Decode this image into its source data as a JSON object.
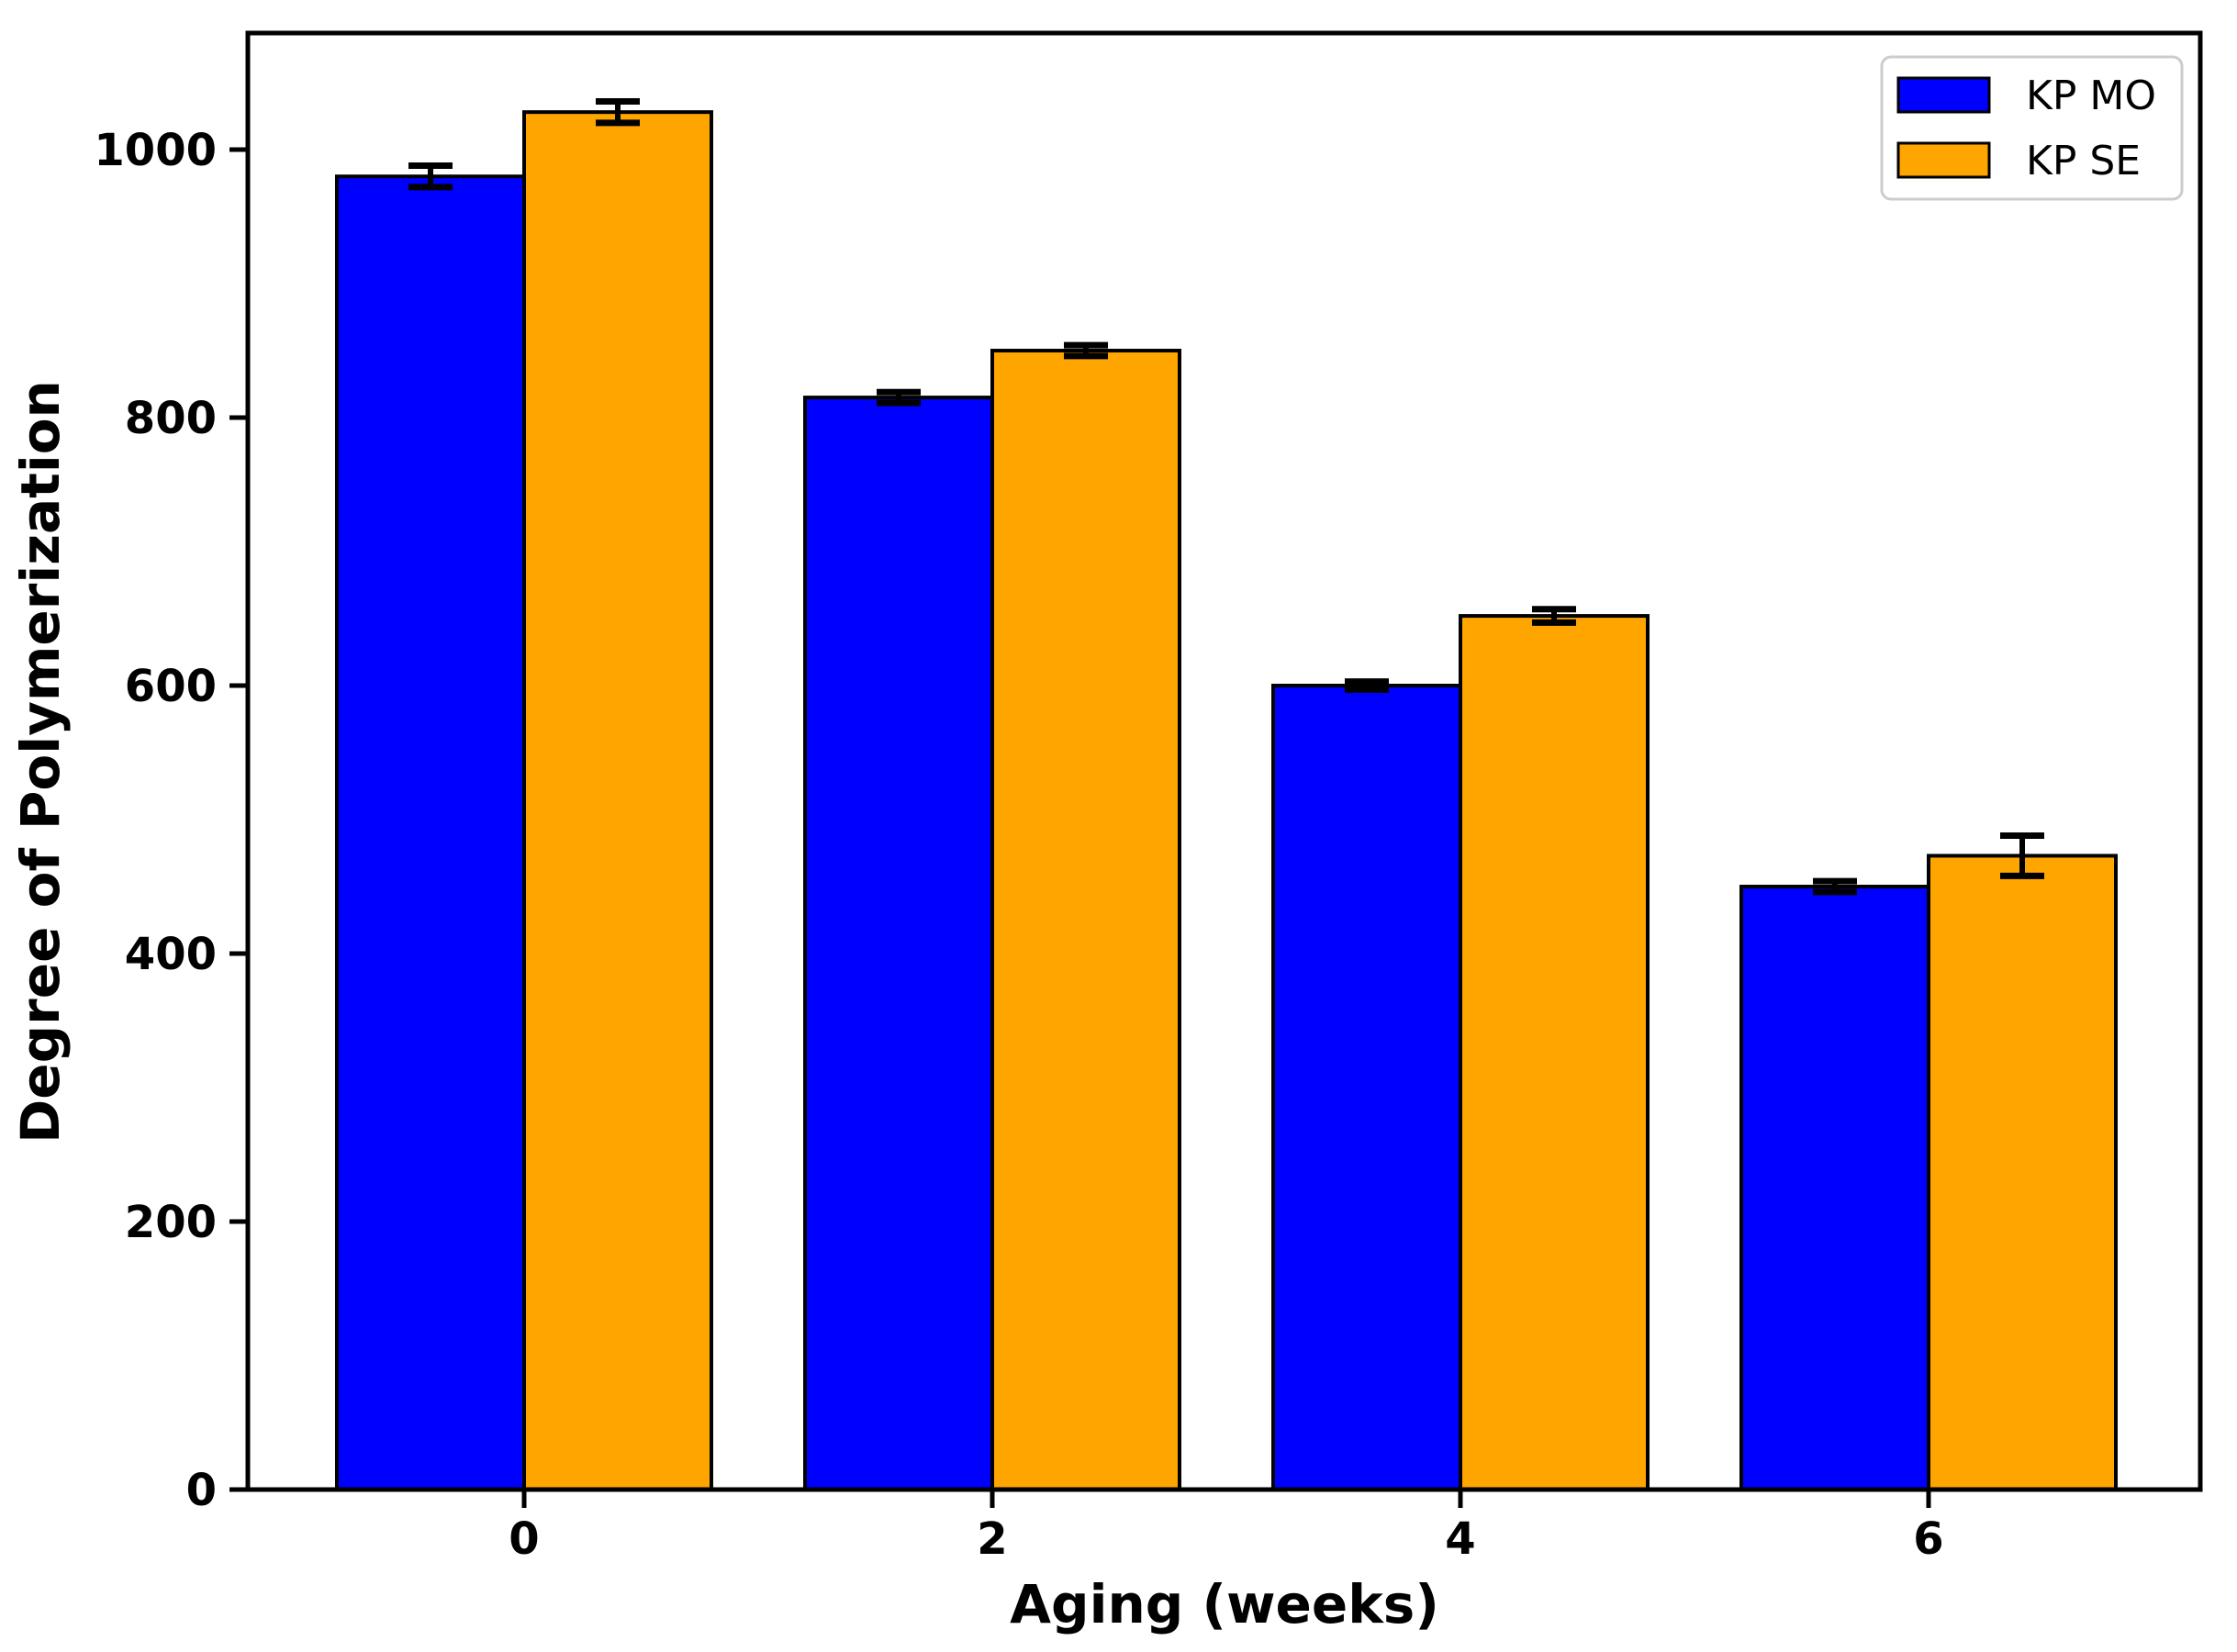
{
  "chart_data": {
    "type": "bar",
    "title": "",
    "xlabel": "Aging (weeks)",
    "ylabel": "Degree of Polymerization",
    "categories": [
      "0",
      "2",
      "4",
      "6"
    ],
    "series": [
      {
        "name": "KP MO",
        "color": "#0000ff",
        "values": [
          980,
          815,
          600,
          450
        ],
        "errors": [
          8,
          4,
          3,
          4
        ]
      },
      {
        "name": "KP SE",
        "color": "#ffa500",
        "values": [
          1028,
          850,
          652,
          473
        ],
        "errors": [
          8,
          4,
          5,
          15
        ]
      }
    ],
    "yticks": [
      0,
      200,
      400,
      600,
      800,
      1000
    ],
    "ylim": [
      0,
      1087
    ],
    "grid": false,
    "legend": {
      "position": "upper right"
    },
    "colors": {
      "bar_edge": "#000000",
      "error_bar": "#000000",
      "axis": "#000000",
      "tick_text": "#000000",
      "legend_border": "#cccccc",
      "background": "#ffffff"
    }
  }
}
